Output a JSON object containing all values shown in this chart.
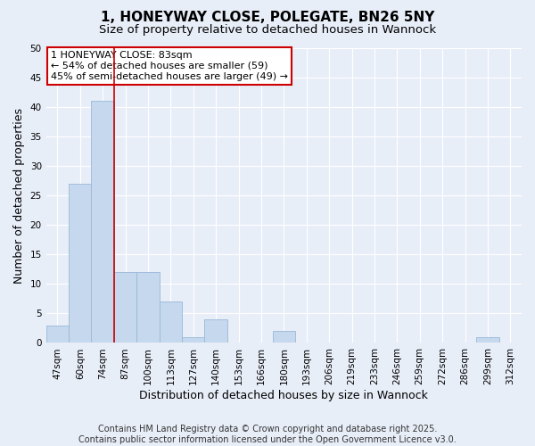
{
  "title": "1, HONEYWAY CLOSE, POLEGATE, BN26 5NY",
  "subtitle": "Size of property relative to detached houses in Wannock",
  "xlabel": "Distribution of detached houses by size in Wannock",
  "ylabel": "Number of detached properties",
  "bin_labels": [
    "47sqm",
    "60sqm",
    "74sqm",
    "87sqm",
    "100sqm",
    "113sqm",
    "127sqm",
    "140sqm",
    "153sqm",
    "166sqm",
    "180sqm",
    "193sqm",
    "206sqm",
    "219sqm",
    "233sqm",
    "246sqm",
    "259sqm",
    "272sqm",
    "286sqm",
    "299sqm",
    "312sqm"
  ],
  "bar_heights": [
    3,
    27,
    41,
    12,
    12,
    7,
    1,
    4,
    0,
    0,
    2,
    0,
    0,
    0,
    0,
    0,
    0,
    0,
    0,
    1,
    0
  ],
  "bar_color": "#c5d8ed",
  "bar_edge_color": "#9ab8d8",
  "ylim": [
    0,
    50
  ],
  "yticks": [
    0,
    5,
    10,
    15,
    20,
    25,
    30,
    35,
    40,
    45,
    50
  ],
  "vline_bin_index": 3,
  "vline_color": "#cc0000",
  "annotation_text_line1": "1 HONEYWAY CLOSE: 83sqm",
  "annotation_text_line2": "← 54% of detached houses are smaller (59)",
  "annotation_text_line3": "45% of semi-detached houses are larger (49) →",
  "annotation_box_color": "#ffffff",
  "annotation_box_edge": "#cc0000",
  "footer_line1": "Contains HM Land Registry data © Crown copyright and database right 2025.",
  "footer_line2": "Contains public sector information licensed under the Open Government Licence v3.0.",
  "background_color": "#e8eef8",
  "grid_color": "#ffffff",
  "title_fontsize": 11,
  "subtitle_fontsize": 9.5,
  "axis_label_fontsize": 9,
  "tick_fontsize": 7.5,
  "annotation_fontsize": 8,
  "footer_fontsize": 7
}
